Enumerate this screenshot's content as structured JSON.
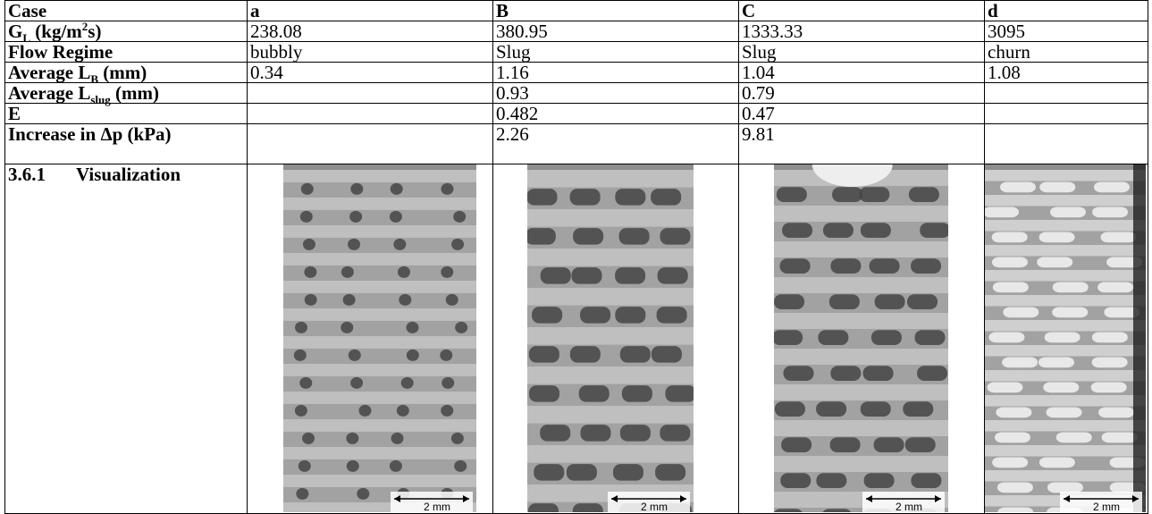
{
  "table": {
    "header": [
      "Case",
      "a",
      "B",
      "C",
      "d"
    ],
    "rows": [
      {
        "label": [
          "G",
          "L",
          " (kg/m",
          "2",
          "s)"
        ],
        "cells": [
          "238.08",
          "380.95",
          "1333.33",
          "3095"
        ]
      },
      {
        "label": [
          "Flow Regime"
        ],
        "cells": [
          "bubbly",
          "Slug",
          "Slug",
          "churn"
        ]
      },
      {
        "label": [
          "Average L",
          "B",
          " (mm)"
        ],
        "cells": [
          "0.34",
          "1.16",
          "1.04",
          "1.08"
        ]
      },
      {
        "label": [
          "Average L",
          "slug",
          " (mm)"
        ],
        "cells": [
          null,
          "0.93",
          "0.79",
          null
        ]
      },
      {
        "label": [
          "E"
        ],
        "cells": [
          null,
          "0.482",
          "0.47",
          null
        ]
      },
      {
        "label": [
          "Increase in Δp (kPa)"
        ],
        "cells": [
          null,
          "2.26",
          "9.81",
          null
        ]
      }
    ],
    "visualization": {
      "number": "3.6.1",
      "label": "Visualization",
      "scale_labels": [
        "2 mm",
        "2 mm",
        "2 mm",
        "2 mm"
      ]
    }
  }
}
